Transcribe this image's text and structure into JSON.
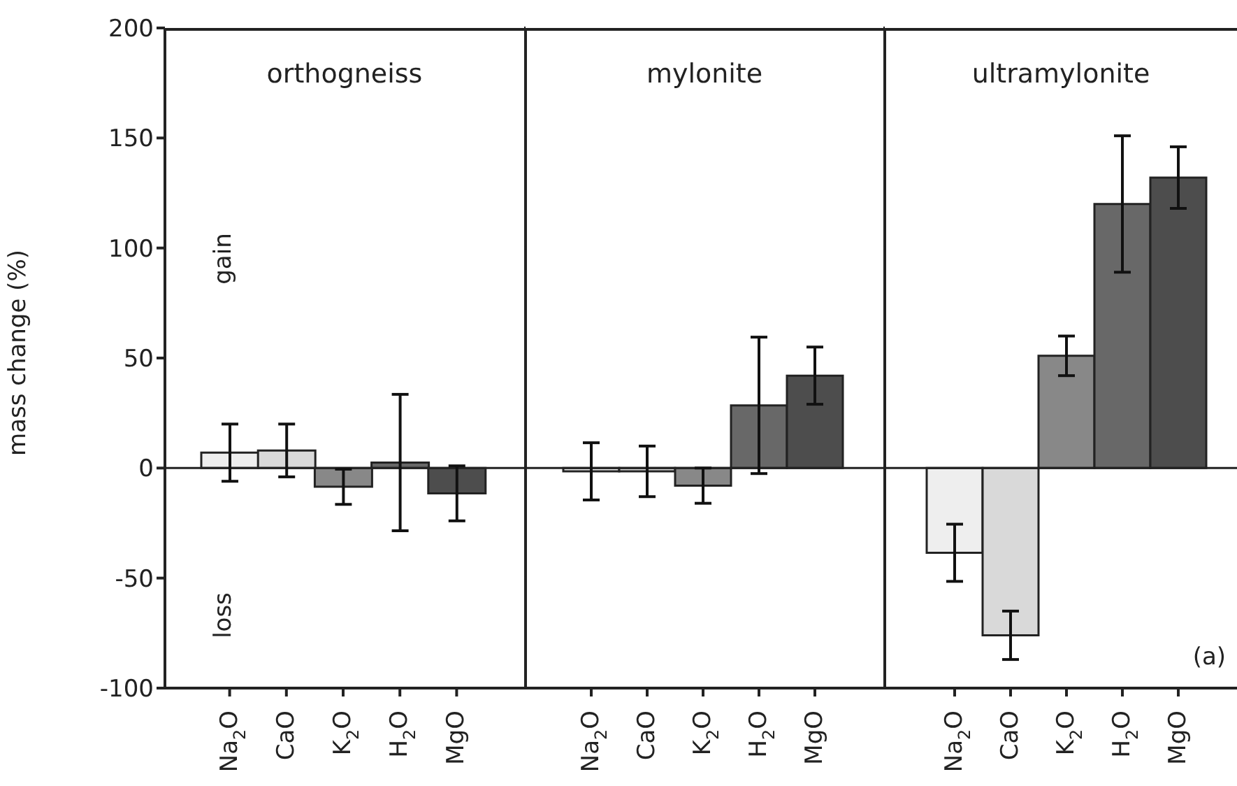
{
  "chart_data": [
    {
      "type": "bar",
      "title": "orthogneiss",
      "ylabel": "mass change (%)",
      "categories": [
        "Na$_{2}$O",
        "CaO",
        "K$_{2}$O",
        "H$_{2}$O",
        "MgO"
      ],
      "values": [
        7,
        8,
        -8.5,
        2.5,
        -11.5
      ],
      "errors": [
        13,
        12,
        8,
        31,
        12.5
      ],
      "colors": [
        "#eeeeee",
        "#d9d9d9",
        "#888888",
        "#686868",
        "#4d4d4d"
      ],
      "ylim": [
        -100,
        200
      ],
      "yticks": [
        -100,
        -50,
        0,
        50,
        100,
        150,
        200
      ],
      "ref_lines": [
        {
          "axis": "y",
          "value": 0
        }
      ],
      "annotations": [
        "gain",
        "loss"
      ]
    },
    {
      "type": "bar",
      "title": "mylonite",
      "categories": [
        "Na$_{2}$O",
        "CaO",
        "K$_{2}$O",
        "H$_{2}$O",
        "MgO"
      ],
      "values": [
        -1.5,
        -1.5,
        -8,
        28.5,
        42
      ],
      "errors": [
        13,
        11.5,
        8,
        31,
        13
      ],
      "colors": [
        "#eeeeee",
        "#d9d9d9",
        "#888888",
        "#686868",
        "#4d4d4d"
      ],
      "ylim": [
        -100,
        200
      ],
      "yticks": [
        -100,
        -50,
        0,
        50,
        100,
        150,
        200
      ],
      "tick_labels": "x",
      "ref_lines": [
        {
          "axis": "y",
          "value": 0
        }
      ]
    },
    {
      "type": "bar",
      "title": "ultramylonite",
      "categories": [
        "Na$_{2}$O",
        "CaO",
        "K$_{2}$O",
        "H$_{2}$O",
        "MgO"
      ],
      "values": [
        -38.5,
        -76,
        51,
        120,
        132
      ],
      "errors": [
        13,
        11,
        9,
        31,
        14
      ],
      "colors": [
        "#eeeeee",
        "#d9d9d9",
        "#888888",
        "#686868",
        "#4d4d4d"
      ],
      "ylim": [
        -100,
        200
      ],
      "yticks": [
        -100,
        -50,
        0,
        50,
        100,
        150,
        200
      ],
      "tick_labels": "x",
      "ref_lines": [
        {
          "axis": "y",
          "value": 0
        }
      ],
      "annotations": [
        "(a)"
      ]
    }
  ]
}
